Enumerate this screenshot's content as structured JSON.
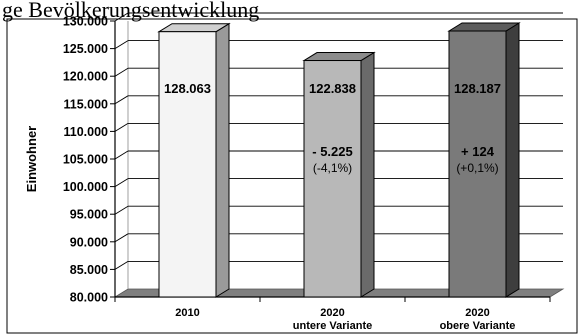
{
  "caption_fragment": "ge Bevölkerungsentwicklung",
  "chart_data": {
    "type": "bar",
    "ylabel": "Einwohner",
    "ylim": [
      80000,
      130000
    ],
    "y_ticks": [
      "80.000",
      "85.000",
      "90.000",
      "95.000",
      "100.000",
      "105.000",
      "110.000",
      "115.000",
      "120.000",
      "125.000",
      "130.000"
    ],
    "grid": true,
    "bars": [
      {
        "category": "2010",
        "subcategory": "",
        "value": 128063,
        "value_label": "128.063",
        "delta_label": "",
        "percent_label": "",
        "color": "#f4f4f4",
        "side_color": "#9a9a9a",
        "top_color": "#d0d0d0"
      },
      {
        "category": "2020",
        "subcategory": "untere Variante",
        "value": 122838,
        "value_label": "122.838",
        "delta_label": "- 5.225",
        "percent_label": "(-4,1%)",
        "color": "#b8b8b8",
        "side_color": "#6a6a6a",
        "top_color": "#8c8c8c"
      },
      {
        "category": "2020",
        "subcategory": "obere Variante",
        "value": 128187,
        "value_label": "128.187",
        "delta_label": "+ 124",
        "percent_label": "(+0,1%)",
        "color": "#7a7a7a",
        "side_color": "#3e3e3e",
        "top_color": "#5c5c5c"
      }
    ]
  }
}
